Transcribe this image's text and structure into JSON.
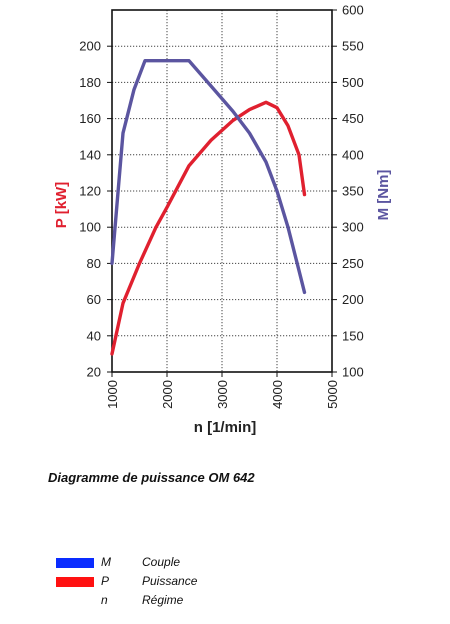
{
  "chart_data": {
    "type": "line",
    "xlabel": "n [1/min]",
    "x_ticks": [
      "1000",
      "2000",
      "3000",
      "4000",
      "5000"
    ],
    "xlim": [
      1000,
      5000
    ],
    "y_left": {
      "label": "P [kW]",
      "ticks": [
        "20",
        "40",
        "60",
        "80",
        "100",
        "120",
        "140",
        "160",
        "180",
        "200"
      ],
      "lim": [
        20,
        220
      ]
    },
    "y_right": {
      "label": "M [Nm]",
      "ticks": [
        "100",
        "150",
        "200",
        "250",
        "300",
        "350",
        "400",
        "450",
        "500",
        "550",
        "600"
      ],
      "lim": [
        100,
        600
      ]
    },
    "grid": true,
    "series": [
      {
        "name": "P",
        "axis": "left",
        "color": "#e0202f",
        "x": [
          1000,
          1200,
          1500,
          1800,
          2000,
          2400,
          2800,
          3200,
          3500,
          3800,
          4000,
          4200,
          4400,
          4500
        ],
        "y": [
          30,
          58,
          80,
          100,
          111,
          134,
          148,
          159,
          165,
          169,
          166,
          156,
          140,
          118
        ]
      },
      {
        "name": "M",
        "axis": "right",
        "color": "#5b55a0",
        "x": [
          1000,
          1200,
          1400,
          1600,
          2000,
          2400,
          2800,
          3200,
          3500,
          3800,
          4000,
          4200,
          4400,
          4500
        ],
        "y": [
          250,
          430,
          490,
          530,
          530,
          530,
          495,
          460,
          430,
          390,
          350,
          300,
          240,
          210
        ]
      }
    ]
  },
  "caption": "Diagramme de puissance OM 642",
  "legend": [
    {
      "color": "#0a2cff",
      "symbol": "M",
      "label": "Couple"
    },
    {
      "color": "#ff1111",
      "symbol": "P",
      "label": "Puissance"
    },
    {
      "color": "",
      "symbol": "n",
      "label": "Régime"
    }
  ]
}
